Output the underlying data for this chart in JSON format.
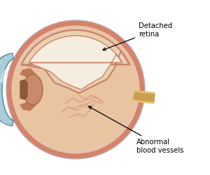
{
  "bg_color": "#ffffff",
  "annotation1_text": "Detached\nretina",
  "annotation2_text": "Abnormal\nblood vessels",
  "outer_gray": "#d4cdd8",
  "outer_gray_edge": "#b8b0c0",
  "sclera_fill": "#e8c4aa",
  "sclera_edge": "#d4846a",
  "retina_line": "#d4846a",
  "vitreous_fill": "#e8c4a0",
  "detached_upper_fill": "#ead0b0",
  "detached_lower_fill": "#e0b898",
  "detached_edge": "#c8846a",
  "cornea_fill": "#a8ccd8",
  "cornea_edge": "#6090a8",
  "cornea_lines": "#88b4c8",
  "iris_fill": "#7ab0c0",
  "iris_edge": "#5090a8",
  "lens_fill": "#c89070",
  "optic_nerve_fill": "#e8c070",
  "optic_nerve_edge": "#c8a050",
  "vessel_color": "#d4907a",
  "vessel_thin": "#c87860",
  "inner_white": "#f5ede0"
}
